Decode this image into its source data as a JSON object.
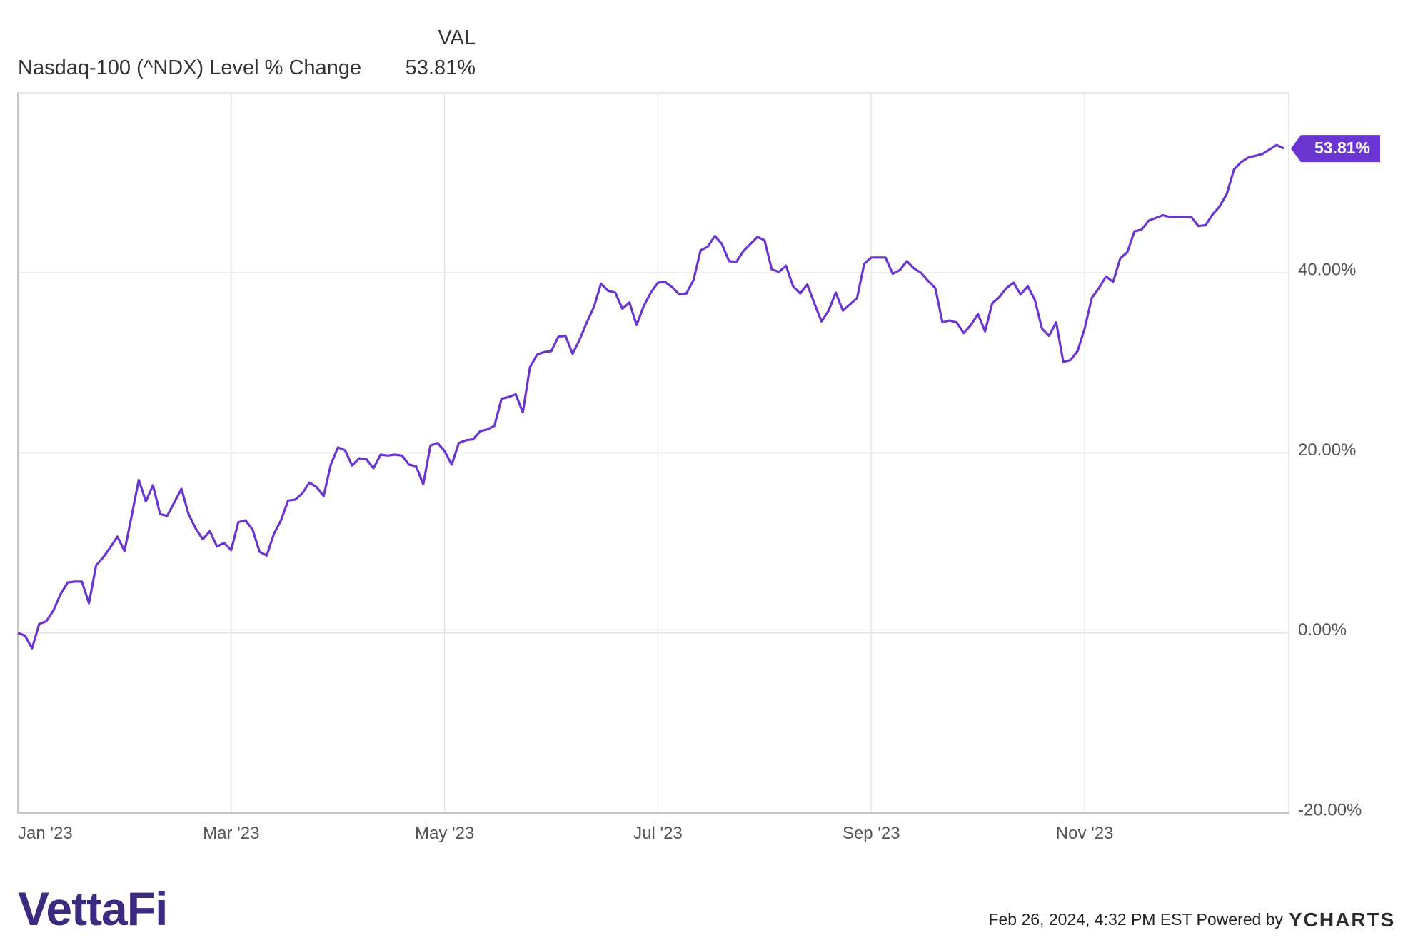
{
  "chart_data": {
    "type": "line",
    "legend_header": "VAL",
    "categories": [
      "Jan '23",
      null,
      null,
      null,
      null,
      null,
      null,
      null,
      null,
      null,
      null,
      null,
      null,
      null,
      null,
      null,
      null,
      null,
      null,
      null,
      null,
      null,
      null,
      null,
      null,
      null,
      null,
      null,
      null,
      null,
      "Mar '23",
      null,
      null,
      null,
      null,
      null,
      null,
      null,
      null,
      null,
      null,
      null,
      null,
      null,
      null,
      null,
      null,
      null,
      null,
      null,
      null,
      null,
      null,
      null,
      null,
      null,
      null,
      null,
      null,
      null,
      "May '23",
      null,
      null,
      null,
      null,
      null,
      null,
      null,
      null,
      null,
      null,
      null,
      null,
      null,
      null,
      null,
      null,
      null,
      null,
      null,
      null,
      null,
      null,
      null,
      null,
      null,
      null,
      null,
      null,
      null,
      "Jul '23",
      null,
      null,
      null,
      null,
      null,
      null,
      null,
      null,
      null,
      null,
      null,
      null,
      null,
      null,
      null,
      null,
      null,
      null,
      null,
      null,
      null,
      null,
      null,
      null,
      null,
      null,
      null,
      null,
      null,
      "Sep '23",
      null,
      null,
      null,
      null,
      null,
      null,
      null,
      null,
      null,
      null,
      null,
      null,
      null,
      null,
      null,
      null,
      null,
      null,
      null,
      null,
      null,
      null,
      null,
      null,
      null,
      null,
      null,
      null,
      null,
      "Nov '23",
      null,
      null,
      null,
      null,
      null,
      null,
      null,
      null,
      null,
      null,
      null,
      null,
      null,
      null,
      null,
      null,
      null,
      null,
      null,
      null,
      null,
      null,
      null,
      null,
      null,
      null,
      null,
      null
    ],
    "series": [
      {
        "name": "Nasdaq-100 (^NDX) Level % Change",
        "color": "#6a35d0",
        "values": [
          0,
          -0.3,
          -1.7,
          1.0,
          1.3,
          2.5,
          4.3,
          5.6,
          5.7,
          5.7,
          3.3,
          7.5,
          8.4,
          9.5,
          10.7,
          9.1,
          13.0,
          17.0,
          14.6,
          16.4,
          13.2,
          13.0,
          14.5,
          16.0,
          13.2,
          11.6,
          10.4,
          11.3,
          9.6,
          10.0,
          9.2,
          12.3,
          12.5,
          11.5,
          9.0,
          8.6,
          11.0,
          12.5,
          14.7,
          14.8,
          15.5,
          16.7,
          16.2,
          15.2,
          18.7,
          20.6,
          20.3,
          18.6,
          19.4,
          19.3,
          18.3,
          19.8,
          19.7,
          19.8,
          19.7,
          18.7,
          18.5,
          16.5,
          20.8,
          21.1,
          20.2,
          18.7,
          21.1,
          21.4,
          21.5,
          22.4,
          22.6,
          23.0,
          26.0,
          26.2,
          26.5,
          24.5,
          29.5,
          30.9,
          31.2,
          31.3,
          32.9,
          33.0,
          31.0,
          32.6,
          34.5,
          36.2,
          38.8,
          38.0,
          37.8,
          36.0,
          36.7,
          34.2,
          36.3,
          37.8,
          38.9,
          39.0,
          38.4,
          37.6,
          37.7,
          39.2,
          42.5,
          42.9,
          44.1,
          43.2,
          41.3,
          41.2,
          42.4,
          43.2,
          44.0,
          43.6,
          40.4,
          40.1,
          40.8,
          38.5,
          37.7,
          38.7,
          36.6,
          34.6,
          35.8,
          37.8,
          35.8,
          36.5,
          37.2,
          41.0,
          41.7,
          41.7,
          41.7,
          39.9,
          40.3,
          41.3,
          40.5,
          40.0,
          39.1,
          38.3,
          34.5,
          34.7,
          34.5,
          33.3,
          34.2,
          35.4,
          33.5,
          36.6,
          37.3,
          38.3,
          38.9,
          37.6,
          38.5,
          37.0,
          33.8,
          33.0,
          34.5,
          30.1,
          30.3,
          31.3,
          33.8,
          37.2,
          38.3,
          39.6,
          39.0,
          41.6,
          42.3,
          44.6,
          44.8,
          45.8,
          46.1,
          46.4,
          46.2,
          46.2,
          46.2,
          46.2,
          45.2,
          45.3,
          46.5,
          47.4,
          48.8,
          51.5,
          52.3,
          52.8,
          53.0,
          53.2,
          53.7,
          54.2,
          53.81
        ],
        "value_labels": [
          null,
          null,
          null,
          null,
          null,
          null,
          null,
          null,
          null,
          null,
          null,
          null,
          null,
          null,
          null,
          null,
          null,
          null,
          null,
          null,
          null,
          null,
          null,
          null,
          null,
          null,
          null,
          null,
          null,
          null,
          null,
          null,
          null,
          null,
          null,
          null,
          null,
          null,
          null,
          null,
          null,
          null,
          null,
          null,
          null,
          null,
          null,
          null,
          null,
          null,
          null,
          null,
          null,
          null,
          null,
          null,
          null,
          null,
          null,
          null,
          null,
          null,
          null,
          null,
          null,
          null,
          null,
          null,
          null,
          null,
          null,
          null,
          null,
          null,
          null,
          null,
          null,
          null,
          null,
          null,
          null,
          null,
          null,
          null,
          null,
          null,
          null,
          null,
          null,
          null,
          null,
          null,
          null,
          null,
          null,
          null,
          null,
          null,
          null,
          null,
          null,
          null,
          null,
          null,
          null,
          null,
          null,
          null,
          null,
          null,
          null,
          null,
          null,
          null,
          null,
          null,
          null,
          null,
          null,
          null,
          null,
          null,
          null,
          null,
          null,
          null,
          null,
          null,
          null,
          null,
          null,
          null,
          null,
          null,
          null,
          null,
          null,
          null,
          null,
          null,
          null,
          null,
          null,
          null,
          null,
          null,
          null,
          null,
          null,
          null,
          null,
          null,
          null,
          null,
          null,
          null,
          null,
          null,
          null,
          null,
          null,
          null,
          null,
          null,
          null,
          null,
          null,
          null,
          null,
          null,
          null,
          null,
          null,
          null,
          null,
          null,
          null,
          null,
          "53.81%"
        ]
      }
    ],
    "ylim": [
      -20,
      60
    ],
    "yticks": [
      {
        "value": -20,
        "label": "-20.00%"
      },
      {
        "value": 0,
        "label": "0.00%"
      },
      {
        "value": 20,
        "label": "20.00%"
      },
      {
        "value": 40,
        "label": "40.00%"
      }
    ],
    "grid": true
  },
  "footer": {
    "brand": "VettaFi",
    "timestamp": "Feb 26, 2024, 4:32 PM EST Powered by",
    "provider": "YCHARTS"
  }
}
